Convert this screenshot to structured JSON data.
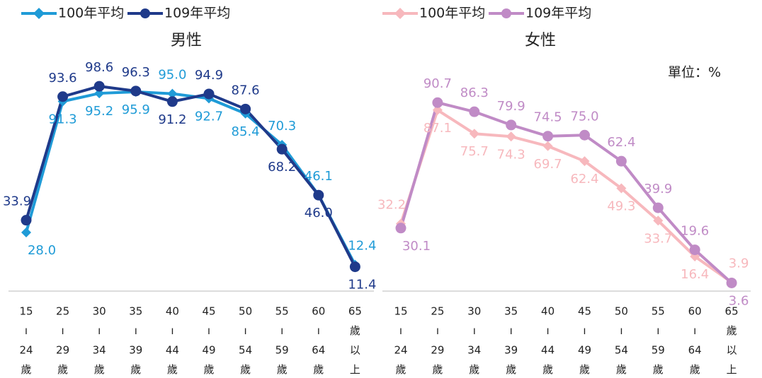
{
  "chart_data": [
    {
      "type": "line",
      "title": "男性",
      "categories": [
        [
          "15",
          "ı",
          "24",
          "歲"
        ],
        [
          "25",
          "ı",
          "29",
          "歲"
        ],
        [
          "30",
          "ı",
          "34",
          "歲"
        ],
        [
          "35",
          "ı",
          "39",
          "歲"
        ],
        [
          "40",
          "ı",
          "44",
          "歲"
        ],
        [
          "45",
          "ı",
          "49",
          "歲"
        ],
        [
          "50",
          "ı",
          "54",
          "歲"
        ],
        [
          "55",
          "ı",
          "59",
          "歲"
        ],
        [
          "60",
          "ı",
          "64",
          "歲"
        ],
        [
          "65",
          "歲",
          "以",
          "上"
        ]
      ],
      "series": [
        {
          "name": "100年平均",
          "color": "#1f9bd7",
          "marker": "diamond",
          "values": [
            28.0,
            91.3,
            95.2,
            95.9,
            95.0,
            92.7,
            85.4,
            70.3,
            46.1,
            12.4
          ],
          "value_labels": [
            "28.0",
            "91.3",
            "95.2",
            "95.9",
            "95.0",
            "92.7",
            "85.4",
            "70.3",
            "46.1",
            "12.4"
          ]
        },
        {
          "name": "109年平均",
          "color": "#1f3a8a",
          "marker": "circle",
          "values": [
            33.9,
            93.6,
            98.6,
            96.3,
            91.2,
            94.9,
            87.6,
            68.2,
            46.0,
            11.4
          ],
          "value_labels": [
            "33.9",
            "93.6",
            "98.6",
            "96.3",
            "91.2",
            "94.9",
            "87.6",
            "68.2",
            "46.0",
            "11.4"
          ]
        }
      ],
      "ylim": [
        0,
        100
      ]
    },
    {
      "type": "line",
      "title": "女性",
      "annotation": "單位：%",
      "categories": [
        [
          "15",
          "ı",
          "24",
          "歲"
        ],
        [
          "25",
          "ı",
          "29",
          "歲"
        ],
        [
          "30",
          "ı",
          "34",
          "歲"
        ],
        [
          "35",
          "ı",
          "39",
          "歲"
        ],
        [
          "40",
          "ı",
          "44",
          "歲"
        ],
        [
          "45",
          "ı",
          "49",
          "歲"
        ],
        [
          "50",
          "ı",
          "54",
          "歲"
        ],
        [
          "55",
          "ı",
          "59",
          "歲"
        ],
        [
          "60",
          "ı",
          "64",
          "歲"
        ],
        [
          "65",
          "歲",
          "以",
          "上"
        ]
      ],
      "series": [
        {
          "name": "100年平均",
          "color": "#f7b8bd",
          "marker": "diamond",
          "values": [
            32.2,
            87.1,
            75.7,
            74.3,
            69.7,
            62.4,
            49.3,
            33.7,
            16.4,
            3.9
          ],
          "value_labels": [
            "32.2",
            "87.1",
            "75.7",
            "74.3",
            "69.7",
            "62.4",
            "49.3",
            "33.7",
            "16.4",
            "3.9"
          ]
        },
        {
          "name": "109年平均",
          "color": "#c08bc6",
          "marker": "circle",
          "values": [
            30.1,
            90.7,
            86.3,
            79.9,
            74.5,
            75.0,
            62.4,
            39.9,
            19.6,
            3.6
          ],
          "value_labels": [
            "30.1",
            "90.7",
            "86.3",
            "79.9",
            "74.5",
            "75.0",
            "62.4",
            "39.9",
            "19.6",
            "3.6"
          ]
        }
      ],
      "ylim": [
        0,
        100
      ]
    }
  ]
}
